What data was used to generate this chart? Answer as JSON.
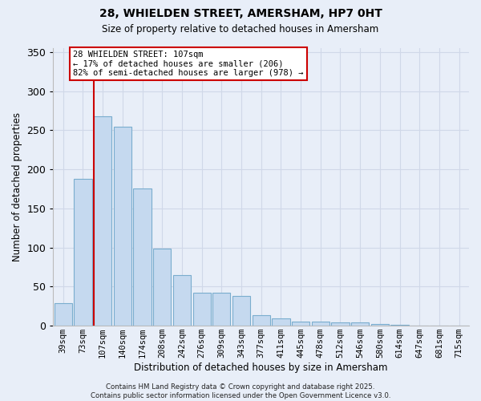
{
  "title_line1": "28, WHIELDEN STREET, AMERSHAM, HP7 0HT",
  "title_line2": "Size of property relative to detached houses in Amersham",
  "xlabel": "Distribution of detached houses by size in Amersham",
  "ylabel": "Number of detached properties",
  "bar_labels": [
    "39sqm",
    "73sqm",
    "107sqm",
    "140sqm",
    "174sqm",
    "208sqm",
    "242sqm",
    "276sqm",
    "309sqm",
    "343sqm",
    "377sqm",
    "411sqm",
    "445sqm",
    "478sqm",
    "512sqm",
    "546sqm",
    "580sqm",
    "614sqm",
    "647sqm",
    "681sqm",
    "715sqm"
  ],
  "bar_values": [
    29,
    188,
    268,
    255,
    176,
    99,
    65,
    42,
    42,
    38,
    13,
    9,
    5,
    5,
    4,
    4,
    2,
    1,
    0,
    0,
    0
  ],
  "bar_color": "#c5d9ef",
  "bar_edge_color": "#7aadce",
  "marker_index": 2,
  "marker_color": "#cc0000",
  "ylim": [
    0,
    355
  ],
  "yticks": [
    0,
    50,
    100,
    150,
    200,
    250,
    300,
    350
  ],
  "annotation_text": "28 WHIELDEN STREET: 107sqm\n← 17% of detached houses are smaller (206)\n82% of semi-detached houses are larger (978) →",
  "annotation_box_facecolor": "#ffffff",
  "annotation_box_edgecolor": "#cc0000",
  "footer_line1": "Contains HM Land Registry data © Crown copyright and database right 2025.",
  "footer_line2": "Contains public sector information licensed under the Open Government Licence v3.0.",
  "background_color": "#e8eef8",
  "grid_color": "#d0d8e8"
}
